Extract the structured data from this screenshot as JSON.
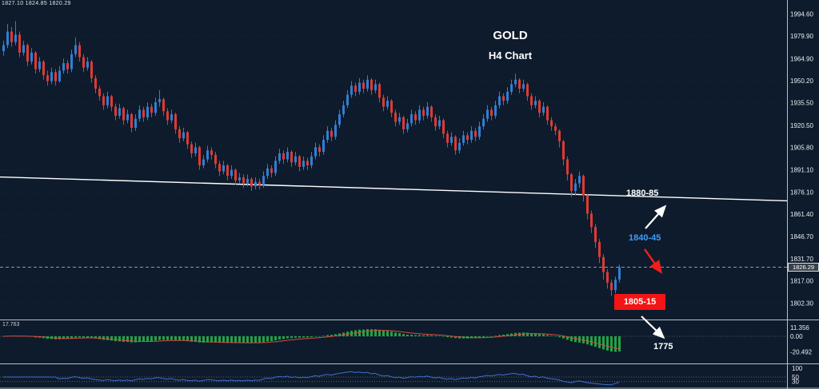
{
  "header": {
    "ohlc_info": "1827.10 1824.85 1820.29",
    "title": "GOLD",
    "subtitle": "H4 Chart"
  },
  "annotations": {
    "resistance_label": "1880-85",
    "midzone_label": "1840-45",
    "supply_box_label": "1805-15",
    "target_label": "1775",
    "current_price_tag": "1826.29"
  },
  "indicator_panels": {
    "macd_header_value": "17.763",
    "macd_axis_labels": [
      "11.356",
      "0.00",
      "-20.492"
    ],
    "rsi_axis_labels": [
      "100",
      "50",
      "30"
    ]
  },
  "colors": {
    "background": "#0e1b2c",
    "bull": "#2f7fd6",
    "bear": "#e03a33",
    "trendline": "#ffffff",
    "histogram": "#21a347",
    "signal": "#d84b3e",
    "rsi": "#3f6fd0",
    "accent_red": "#f31414",
    "accent_blue": "#3f9bff",
    "axis_text": "#e9edf1"
  },
  "chart_data": {
    "type": "candlestick",
    "symbol": "GOLD",
    "timeframe": "H4",
    "price_axis": {
      "max": 2004,
      "min": 1792,
      "tick_labels": [
        "1994.60",
        "1979.90",
        "1964.90",
        "1950.20",
        "1935.50",
        "1920.50",
        "1905.80",
        "1891.10",
        "1876.10",
        "1861.40",
        "1846.70",
        "1831.70",
        "1817.00",
        "1802.30"
      ]
    },
    "current_price": 1826.29,
    "trendline": {
      "price_at_left": 1886.3,
      "price_at_right": 1870.4
    },
    "macd_end_value": -20.492,
    "rsi_levels": [
      50,
      30
    ],
    "candles_ohlc": [
      [
        1970,
        1977,
        1967,
        1974
      ],
      [
        1974,
        1988,
        1972,
        1983
      ],
      [
        1983,
        1986,
        1973,
        1976
      ],
      [
        1976,
        1990,
        1974,
        1981
      ],
      [
        1981,
        1983,
        1966,
        1969
      ],
      [
        1969,
        1977,
        1967,
        1974
      ],
      [
        1974,
        1975,
        1960,
        1963
      ],
      [
        1963,
        1972,
        1961,
        1969
      ],
      [
        1969,
        1970,
        1955,
        1958
      ],
      [
        1958,
        1966,
        1956,
        1963
      ],
      [
        1963,
        1964,
        1951,
        1954
      ],
      [
        1954,
        1957,
        1947,
        1950
      ],
      [
        1950,
        1959,
        1948,
        1956
      ],
      [
        1956,
        1958,
        1947,
        1950
      ],
      [
        1950,
        1960,
        1949,
        1957
      ],
      [
        1957,
        1965,
        1955,
        1962
      ],
      [
        1962,
        1964,
        1955,
        1958
      ],
      [
        1958,
        1971,
        1956,
        1968
      ],
      [
        1968,
        1979,
        1966,
        1974
      ],
      [
        1974,
        1976,
        1963,
        1966
      ],
      [
        1966,
        1968,
        1956,
        1959
      ],
      [
        1959,
        1966,
        1957,
        1963
      ],
      [
        1963,
        1964,
        1949,
        1952
      ],
      [
        1952,
        1954,
        1942,
        1945
      ],
      [
        1945,
        1947,
        1937,
        1940
      ],
      [
        1940,
        1942,
        1931,
        1934
      ],
      [
        1934,
        1943,
        1932,
        1940
      ],
      [
        1940,
        1941,
        1930,
        1933
      ],
      [
        1933,
        1935,
        1924,
        1927
      ],
      [
        1927,
        1935,
        1925,
        1932
      ],
      [
        1932,
        1933,
        1921,
        1924
      ],
      [
        1924,
        1931,
        1922,
        1928
      ],
      [
        1928,
        1929,
        1916,
        1919
      ],
      [
        1919,
        1928,
        1917,
        1925
      ],
      [
        1925,
        1934,
        1923,
        1931
      ],
      [
        1931,
        1933,
        1923,
        1926
      ],
      [
        1926,
        1936,
        1924,
        1933
      ],
      [
        1933,
        1935,
        1926,
        1929
      ],
      [
        1929,
        1939,
        1927,
        1936
      ],
      [
        1936,
        1944,
        1933,
        1938
      ],
      [
        1938,
        1939,
        1927,
        1930
      ],
      [
        1930,
        1932,
        1921,
        1924
      ],
      [
        1924,
        1931,
        1922,
        1928
      ],
      [
        1928,
        1929,
        1915,
        1918
      ],
      [
        1918,
        1920,
        1909,
        1912
      ],
      [
        1912,
        1919,
        1910,
        1916
      ],
      [
        1916,
        1917,
        1905,
        1908
      ],
      [
        1908,
        1910,
        1899,
        1902
      ],
      [
        1902,
        1909,
        1900,
        1906
      ],
      [
        1906,
        1907,
        1891,
        1894
      ],
      [
        1894,
        1901,
        1892,
        1898
      ],
      [
        1898,
        1907,
        1896,
        1904
      ],
      [
        1904,
        1906,
        1898,
        1901
      ],
      [
        1901,
        1903,
        1892,
        1895
      ],
      [
        1895,
        1897,
        1887,
        1890
      ],
      [
        1890,
        1897,
        1888,
        1894
      ],
      [
        1894,
        1895,
        1884,
        1887
      ],
      [
        1887,
        1894,
        1885,
        1891
      ],
      [
        1891,
        1892,
        1881,
        1884
      ],
      [
        1884,
        1889,
        1882,
        1886
      ],
      [
        1886,
        1888,
        1879,
        1882
      ],
      [
        1882,
        1888,
        1880,
        1885
      ],
      [
        1885,
        1886,
        1877,
        1880
      ],
      [
        1880,
        1886,
        1878,
        1883
      ],
      [
        1883,
        1885,
        1878,
        1881
      ],
      [
        1881,
        1890,
        1879,
        1887
      ],
      [
        1887,
        1895,
        1885,
        1892
      ],
      [
        1892,
        1894,
        1886,
        1889
      ],
      [
        1889,
        1900,
        1887,
        1897
      ],
      [
        1897,
        1905,
        1895,
        1902
      ],
      [
        1902,
        1904,
        1895,
        1898
      ],
      [
        1898,
        1906,
        1896,
        1903
      ],
      [
        1903,
        1904,
        1893,
        1896
      ],
      [
        1896,
        1903,
        1894,
        1900
      ],
      [
        1900,
        1901,
        1890,
        1893
      ],
      [
        1893,
        1900,
        1891,
        1897
      ],
      [
        1897,
        1899,
        1891,
        1894
      ],
      [
        1894,
        1903,
        1892,
        1900
      ],
      [
        1900,
        1909,
        1898,
        1906
      ],
      [
        1906,
        1908,
        1900,
        1903
      ],
      [
        1903,
        1914,
        1901,
        1911
      ],
      [
        1911,
        1920,
        1909,
        1917
      ],
      [
        1917,
        1919,
        1910,
        1913
      ],
      [
        1913,
        1924,
        1911,
        1921
      ],
      [
        1921,
        1931,
        1919,
        1928
      ],
      [
        1928,
        1937,
        1926,
        1934
      ],
      [
        1934,
        1944,
        1932,
        1941
      ],
      [
        1941,
        1950,
        1939,
        1947
      ],
      [
        1947,
        1949,
        1940,
        1943
      ],
      [
        1943,
        1952,
        1941,
        1949
      ],
      [
        1949,
        1951,
        1942,
        1945
      ],
      [
        1945,
        1954,
        1943,
        1951
      ],
      [
        1951,
        1952,
        1941,
        1944
      ],
      [
        1944,
        1951,
        1942,
        1948
      ],
      [
        1948,
        1949,
        1936,
        1939
      ],
      [
        1939,
        1941,
        1930,
        1933
      ],
      [
        1933,
        1940,
        1931,
        1937
      ],
      [
        1937,
        1938,
        1926,
        1929
      ],
      [
        1929,
        1931,
        1920,
        1923
      ],
      [
        1923,
        1929,
        1921,
        1926
      ],
      [
        1926,
        1927,
        1915,
        1918
      ],
      [
        1918,
        1925,
        1916,
        1922
      ],
      [
        1922,
        1931,
        1920,
        1928
      ],
      [
        1928,
        1930,
        1921,
        1924
      ],
      [
        1924,
        1934,
        1922,
        1931
      ],
      [
        1931,
        1933,
        1924,
        1927
      ],
      [
        1927,
        1936,
        1925,
        1933
      ],
      [
        1933,
        1934,
        1923,
        1926
      ],
      [
        1926,
        1928,
        1917,
        1920
      ],
      [
        1920,
        1927,
        1918,
        1924
      ],
      [
        1924,
        1925,
        1912,
        1915
      ],
      [
        1915,
        1917,
        1906,
        1909
      ],
      [
        1909,
        1916,
        1907,
        1913
      ],
      [
        1913,
        1914,
        1901,
        1904
      ],
      [
        1904,
        1912,
        1902,
        1909
      ],
      [
        1909,
        1917,
        1907,
        1914
      ],
      [
        1914,
        1916,
        1908,
        1911
      ],
      [
        1911,
        1920,
        1909,
        1917
      ],
      [
        1917,
        1919,
        1910,
        1913
      ],
      [
        1913,
        1923,
        1911,
        1920
      ],
      [
        1920,
        1928,
        1918,
        1925
      ],
      [
        1925,
        1934,
        1923,
        1931
      ],
      [
        1931,
        1933,
        1924,
        1927
      ],
      [
        1927,
        1937,
        1925,
        1934
      ],
      [
        1934,
        1943,
        1932,
        1940
      ],
      [
        1940,
        1942,
        1934,
        1937
      ],
      [
        1937,
        1946,
        1935,
        1943
      ],
      [
        1943,
        1951,
        1941,
        1948
      ],
      [
        1948,
        1955,
        1946,
        1951
      ],
      [
        1951,
        1952,
        1942,
        1945
      ],
      [
        1945,
        1951,
        1943,
        1948
      ],
      [
        1948,
        1949,
        1937,
        1940
      ],
      [
        1940,
        1942,
        1931,
        1934
      ],
      [
        1934,
        1940,
        1932,
        1937
      ],
      [
        1937,
        1938,
        1926,
        1929
      ],
      [
        1929,
        1936,
        1927,
        1933
      ],
      [
        1933,
        1934,
        1921,
        1924
      ],
      [
        1924,
        1926,
        1917,
        1920
      ],
      [
        1920,
        1922,
        1914,
        1917
      ],
      [
        1917,
        1918,
        1906,
        1910
      ],
      [
        1910,
        1911,
        1894,
        1898
      ],
      [
        1898,
        1900,
        1884,
        1888
      ],
      [
        1888,
        1889,
        1873,
        1877
      ],
      [
        1877,
        1885,
        1874,
        1882
      ],
      [
        1882,
        1890,
        1879,
        1887
      ],
      [
        1887,
        1888,
        1870,
        1874
      ],
      [
        1874,
        1875,
        1858,
        1862
      ],
      [
        1862,
        1864,
        1849,
        1853
      ],
      [
        1853,
        1855,
        1839,
        1843
      ],
      [
        1843,
        1845,
        1829,
        1833
      ],
      [
        1833,
        1835,
        1818,
        1823
      ],
      [
        1823,
        1825,
        1812,
        1816
      ],
      [
        1816,
        1818,
        1807,
        1811
      ],
      [
        1811,
        1820,
        1809,
        1818
      ],
      [
        1818,
        1828,
        1816,
        1826.3
      ]
    ]
  }
}
